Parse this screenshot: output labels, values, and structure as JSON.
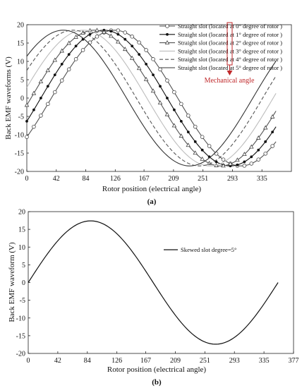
{
  "chart_data": [
    {
      "panel_label": "(a)",
      "type": "line",
      "xlabel": "Rotor position (electrical angle)",
      "ylabel": "Back EMF waveforms (V)",
      "xlim": [
        0,
        377
      ],
      "ylim": [
        -20,
        20
      ],
      "x_ticks": [
        0,
        42,
        84,
        126,
        167,
        209,
        251,
        293,
        335
      ],
      "x_tick_labels": [
        "0",
        "42",
        "84",
        "126",
        "167",
        "209",
        "251",
        "293",
        "335"
      ],
      "y_ticks": [
        -20,
        -15,
        -10,
        -5,
        0,
        5,
        10,
        15,
        20
      ],
      "y_tick_labels": [
        "-20",
        "-15",
        "-10",
        "-5",
        "0",
        "5",
        "10",
        "15",
        "20"
      ],
      "legend_position": "top-right",
      "annotation": "Mechanical angle",
      "amplitude": 18.5,
      "x_start": 0,
      "x_end": 355,
      "series": [
        {
          "name": "Straight slot (located at 0° degree of rotor )",
          "y_at_0": -10.5,
          "peak_x": 125,
          "trough_x": 305,
          "y_at_355": -10.5,
          "style": "solid",
          "color": "#555555",
          "marker": "circle"
        },
        {
          "name": "Straight slot (located at 1° degree of rotor )",
          "y_at_0": -6.0,
          "peak_x": 110,
          "trough_x": 290,
          "y_at_355": -6.0,
          "style": "solid",
          "color": "#111111",
          "marker": "dot"
        },
        {
          "name": "Straight slot (located at 2° degree of rotor )",
          "y_at_0": -1.5,
          "peak_x": 96,
          "trough_x": 276,
          "y_at_355": -2.0,
          "style": "solid",
          "color": "#555555",
          "marker": "triangle"
        },
        {
          "name": "Straight slot (located at 3° degree of rotor )",
          "y_at_0": 3.5,
          "peak_x": 81,
          "trough_x": 261,
          "y_at_355": 3.0,
          "style": "solid",
          "color": "#bdbdbd",
          "marker": "none"
        },
        {
          "name": "Straight slot (located at 4° degree of rotor )",
          "y_at_0": 8.0,
          "peak_x": 66,
          "trough_x": 246,
          "y_at_355": 8.0,
          "style": "dashed",
          "color": "#555555",
          "marker": "none"
        },
        {
          "name": "Straight slot (located at 5° degree of rotor )",
          "y_at_0": 12.0,
          "peak_x": 52,
          "trough_x": 232,
          "y_at_355": 12.0,
          "style": "solid",
          "color": "#333333",
          "marker": "none"
        }
      ]
    },
    {
      "panel_label": "(b)",
      "type": "line",
      "xlabel": "Rotor position (electrical angle)",
      "ylabel": "Back EMF waveform (V)",
      "xlim": [
        0,
        377
      ],
      "ylim": [
        -20,
        20
      ],
      "x_ticks": [
        0,
        42,
        84,
        126,
        167,
        209,
        251,
        293,
        335,
        377
      ],
      "x_tick_labels": [
        "0",
        "42",
        "84",
        "126",
        "167",
        "209",
        "251",
        "293",
        "335",
        "377"
      ],
      "y_ticks": [
        -20,
        -15,
        -10,
        -5,
        0,
        5,
        10,
        15,
        20
      ],
      "y_tick_labels": [
        "-20",
        "-15",
        "-10",
        "-5",
        "0",
        "5",
        "10",
        "15",
        "20"
      ],
      "legend_position": "top-right",
      "series": [
        {
          "name": "Skewed slot degree=5°",
          "amplitude": 17.4,
          "y_at_0": 0.0,
          "peak_x": 88,
          "trough_x": 266,
          "x_end": 355,
          "y_at_355": 0.5,
          "style": "solid",
          "color": "#111111",
          "marker": "none"
        }
      ]
    }
  ]
}
